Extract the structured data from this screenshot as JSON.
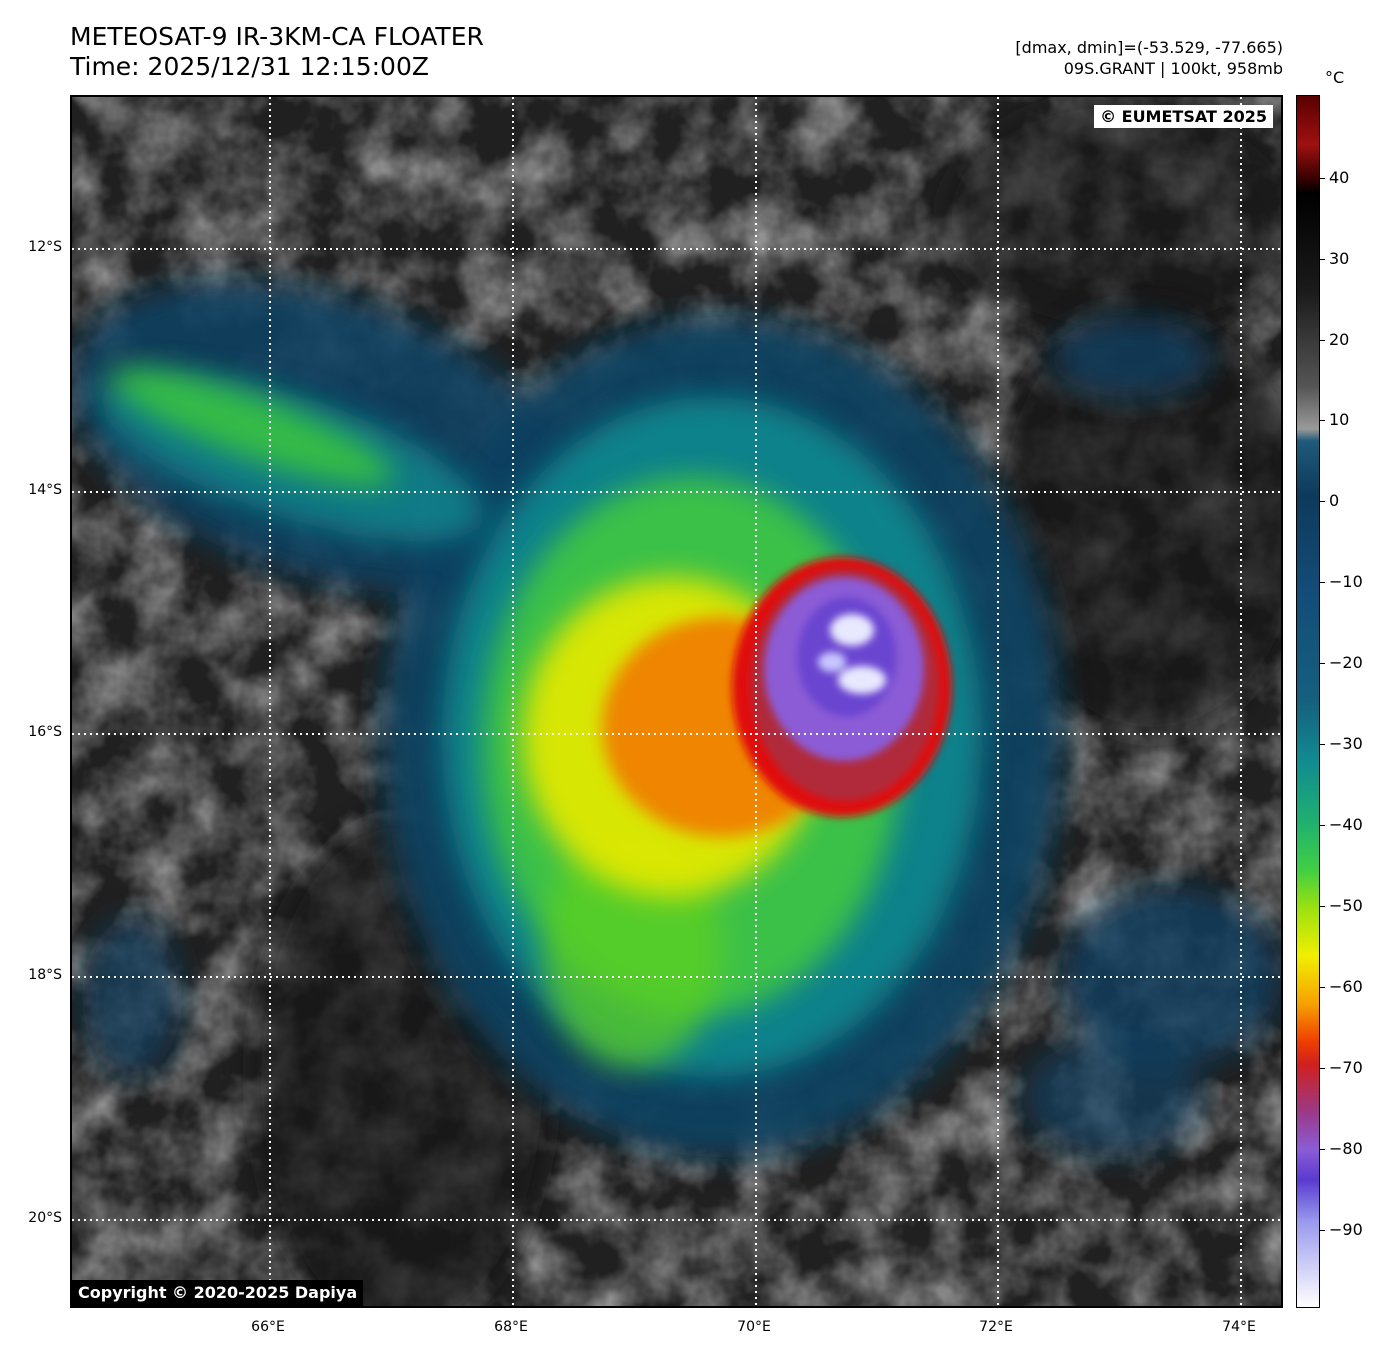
{
  "title": {
    "line1": "METEOSAT-9 IR-3KM-CA FLOATER",
    "line2": "Time: 2025/12/31 12:15:00Z"
  },
  "info": {
    "line1": "[dmax, dmin]=(-53.529, -77.665)",
    "line2": "09S.GRANT | 100kt, 958mb"
  },
  "map": {
    "overlay_top_right": "© EUMETSAT 2025",
    "overlay_bottom_left": "Copyright © 2020-2025 Dapiya",
    "lat_labels": [
      "12°S",
      "14°S",
      "16°S",
      "18°S",
      "20°S"
    ],
    "lon_labels": [
      "66°E",
      "68°E",
      "70°E",
      "72°E",
      "74°E"
    ],
    "storm": {
      "name": "GRANT",
      "id": "09S",
      "intensity": "100kt",
      "pressure": "958mb"
    }
  },
  "colorbar": {
    "unit": "°C",
    "ticks": [
      "40",
      "30",
      "20",
      "10",
      "0",
      "−10",
      "−20",
      "−30",
      "−40",
      "−50",
      "−60",
      "−70",
      "−80",
      "−90"
    ]
  },
  "colors": {
    "cloud_top_coldest": "#e8e8ff",
    "eyewall_purple": "#8b5cd6",
    "ring_red": "#e01010",
    "orange": "#f08000",
    "yellow": "#f0e000",
    "green": "#40d030",
    "teal": "#118a90",
    "dark_blue": "#0f4060",
    "gray": "#4a4a4a"
  }
}
